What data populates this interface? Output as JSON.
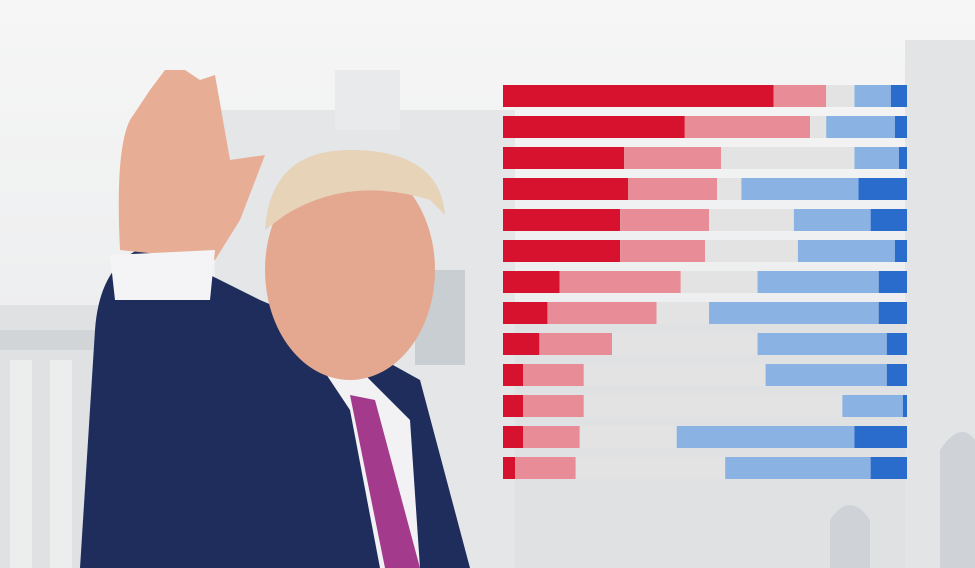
{
  "chart_data": {
    "type": "stacked-bar",
    "orientation": "horizontal",
    "categories": [
      null,
      null,
      null,
      null,
      null,
      null,
      null,
      null,
      null,
      null,
      null,
      null,
      null
    ],
    "xlim": [
      0,
      100
    ],
    "series": [
      {
        "color": "#d7122e",
        "values": [
          67,
          45,
          30,
          31,
          29,
          29,
          14,
          11,
          9,
          5,
          5,
          5,
          3
        ]
      },
      {
        "color": "#e88c98",
        "values": [
          13,
          31,
          24,
          22,
          22,
          21,
          30,
          27,
          18,
          15,
          15,
          14,
          15
        ]
      },
      {
        "color": "#e3e3e3",
        "values": [
          7,
          4,
          33,
          6,
          21,
          23,
          19,
          13,
          36,
          45,
          64,
          24,
          37
        ]
      },
      {
        "color": "#8ab3e3",
        "values": [
          9,
          17,
          11,
          29,
          19,
          24,
          30,
          42,
          32,
          30,
          15,
          44,
          36
        ]
      },
      {
        "color": "#2a6ccc",
        "values": [
          4,
          3,
          2,
          12,
          9,
          3,
          7,
          7,
          5,
          5,
          1,
          13,
          9
        ]
      }
    ]
  }
}
